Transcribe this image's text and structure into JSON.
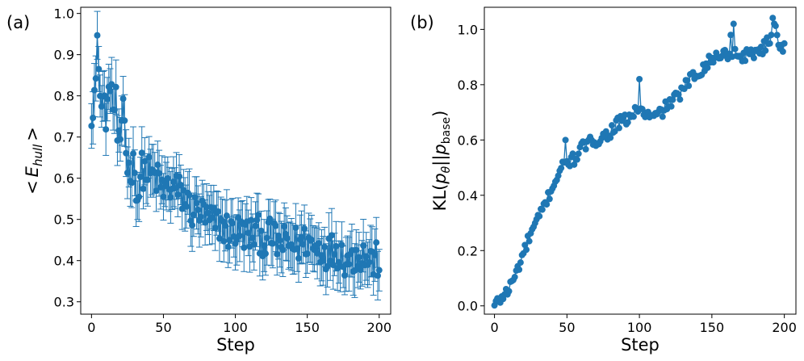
{
  "chart_data": [
    {
      "panel_label": "(a)",
      "type": "scatter",
      "style": "line-with-markers-and-errorbars",
      "color": "#1f77b4",
      "xlabel": "Step",
      "ylabel": "< E_hull >",
      "ylabel_parts": {
        "open": "<",
        "E": "E",
        "sub": "hull",
        "close": ">"
      },
      "xlim": [
        -7.5,
        208
      ],
      "ylim": [
        0.27,
        1.015
      ],
      "xticks": [
        0,
        50,
        100,
        150,
        200
      ],
      "yticks": [
        0.3,
        0.4,
        0.5,
        0.6,
        0.7,
        0.8,
        0.9,
        1.0
      ],
      "ytick_labels": [
        "0.3",
        "0.4",
        "0.5",
        "0.6",
        "0.7",
        "0.8",
        "0.9",
        "1.0"
      ],
      "grid": false,
      "anchors": [
        [
          0,
          0.77
        ],
        [
          1,
          0.79
        ],
        [
          2,
          0.81
        ],
        [
          3,
          0.83
        ],
        [
          4,
          0.91
        ],
        [
          5,
          0.9
        ],
        [
          6,
          0.8
        ],
        [
          7,
          0.77
        ],
        [
          8,
          0.79
        ],
        [
          10,
          0.76
        ],
        [
          12,
          0.78
        ],
        [
          13,
          0.85
        ],
        [
          15,
          0.77
        ],
        [
          17,
          0.78
        ],
        [
          18,
          0.7
        ],
        [
          20,
          0.65
        ],
        [
          22,
          0.8
        ],
        [
          25,
          0.62
        ],
        [
          30,
          0.63
        ],
        [
          32,
          0.55
        ],
        [
          35,
          0.62
        ],
        [
          40,
          0.61
        ],
        [
          45,
          0.6
        ],
        [
          50,
          0.57
        ],
        [
          55,
          0.58
        ],
        [
          60,
          0.57
        ],
        [
          65,
          0.55
        ],
        [
          70,
          0.52
        ],
        [
          75,
          0.52
        ],
        [
          80,
          0.5
        ],
        [
          85,
          0.49
        ],
        [
          90,
          0.49
        ],
        [
          95,
          0.47
        ],
        [
          100,
          0.47
        ],
        [
          105,
          0.47
        ],
        [
          110,
          0.46
        ],
        [
          115,
          0.47
        ],
        [
          120,
          0.45
        ],
        [
          125,
          0.46
        ],
        [
          130,
          0.44
        ],
        [
          135,
          0.44
        ],
        [
          140,
          0.44
        ],
        [
          145,
          0.44
        ],
        [
          150,
          0.45
        ],
        [
          155,
          0.43
        ],
        [
          160,
          0.43
        ],
        [
          165,
          0.42
        ],
        [
          170,
          0.43
        ],
        [
          175,
          0.41
        ],
        [
          180,
          0.4
        ],
        [
          185,
          0.42
        ],
        [
          190,
          0.41
        ],
        [
          195,
          0.4
        ],
        [
          200,
          0.4
        ]
      ],
      "error_halfwidth": 0.055
    },
    {
      "panel_label": "(b)",
      "type": "scatter",
      "style": "line-with-markers",
      "color": "#1f77b4",
      "xlabel": "Step",
      "ylabel": "KL(p_θ||p_base)",
      "ylabel_parts": {
        "pre": "KL(",
        "p1": "p",
        "sub1": "θ",
        "mid": "||",
        "p2": "p",
        "sub2": "base",
        "post": ")"
      },
      "xlim": [
        -7,
        208
      ],
      "ylim": [
        -0.03,
        1.08
      ],
      "xticks": [
        0,
        50,
        100,
        150,
        200
      ],
      "yticks": [
        0.0,
        0.2,
        0.4,
        0.6,
        0.8,
        1.0
      ],
      "ytick_labels": [
        "0.0",
        "0.2",
        "0.4",
        "0.6",
        "0.8",
        "1.0"
      ],
      "grid": false,
      "anchors": [
        [
          0,
          0.0
        ],
        [
          5,
          0.03
        ],
        [
          10,
          0.06
        ],
        [
          15,
          0.12
        ],
        [
          20,
          0.19
        ],
        [
          25,
          0.26
        ],
        [
          30,
          0.31
        ],
        [
          35,
          0.37
        ],
        [
          40,
          0.43
        ],
        [
          45,
          0.49
        ],
        [
          50,
          0.52
        ],
        [
          55,
          0.53
        ],
        [
          60,
          0.57
        ],
        [
          65,
          0.59
        ],
        [
          70,
          0.6
        ],
        [
          75,
          0.61
        ],
        [
          80,
          0.63
        ],
        [
          85,
          0.66
        ],
        [
          90,
          0.67
        ],
        [
          95,
          0.69
        ],
        [
          100,
          0.71
        ],
        [
          105,
          0.69
        ],
        [
          110,
          0.68
        ],
        [
          115,
          0.7
        ],
        [
          120,
          0.73
        ],
        [
          125,
          0.75
        ],
        [
          130,
          0.78
        ],
        [
          135,
          0.82
        ],
        [
          140,
          0.84
        ],
        [
          145,
          0.87
        ],
        [
          150,
          0.89
        ],
        [
          155,
          0.91
        ],
        [
          160,
          0.91
        ],
        [
          165,
          0.92
        ],
        [
          170,
          0.9
        ],
        [
          175,
          0.91
        ],
        [
          180,
          0.92
        ],
        [
          185,
          0.93
        ],
        [
          190,
          0.96
        ],
        [
          192,
          1.03
        ],
        [
          194,
          1.03
        ],
        [
          196,
          0.95
        ],
        [
          200,
          0.93
        ]
      ],
      "extra_points": [
        [
          49,
          0.6
        ],
        [
          67,
          0.6
        ],
        [
          100,
          0.82
        ],
        [
          165,
          1.02
        ],
        [
          163,
          0.98
        ]
      ]
    }
  ]
}
